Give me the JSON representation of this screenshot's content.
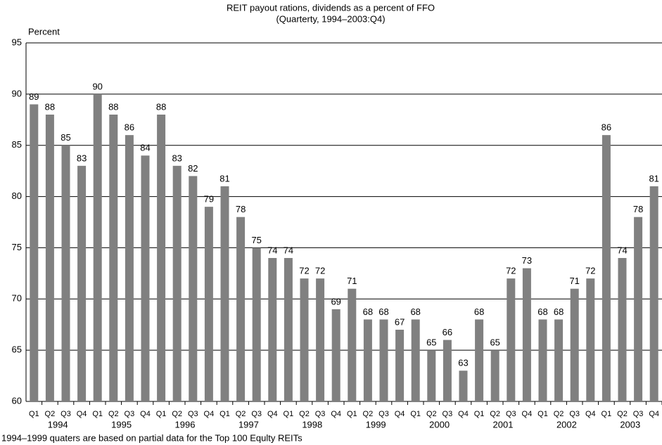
{
  "chart_data": {
    "type": "bar",
    "title": "REIT payout rations, dividends as a percent of FFO",
    "subtitle": "(Quarterty, 1994–2003:Q4)",
    "y_axis_label": "Percent",
    "footnote": "1994–1999 quaters are based on  partial data for the Top 100 Equlty REITs",
    "categories": [
      "Q1",
      "Q2",
      "Q3",
      "Q4",
      "Q1",
      "Q2",
      "Q3",
      "Q4",
      "Q1",
      "Q2",
      "Q3",
      "Q4",
      "Q1",
      "Q2",
      "Q3",
      "Q4",
      "Q1",
      "Q2",
      "Q3",
      "Q4",
      "Q1",
      "Q2",
      "Q3",
      "Q4",
      "Q1",
      "Q2",
      "Q3",
      "Q4",
      "Q1",
      "Q2",
      "Q3",
      "Q4",
      "Q1",
      "Q2",
      "Q3",
      "Q4",
      "Q1",
      "Q2",
      "Q3",
      "Q4"
    ],
    "years": [
      "1994",
      "1995",
      "1996",
      "1997",
      "1998",
      "1999",
      "2000",
      "2001",
      "2002",
      "2003"
    ],
    "values": [
      89,
      88,
      85,
      83,
      90,
      88,
      86,
      84,
      88,
      83,
      82,
      79,
      81,
      78,
      75,
      74,
      74,
      72,
      72,
      69,
      71,
      68,
      68,
      67,
      68,
      65,
      66,
      63,
      68,
      65,
      72,
      73,
      68,
      68,
      71,
      72,
      86,
      74,
      78,
      81
    ],
    "color": "#808080",
    "ylim": [
      60,
      95
    ],
    "yticks": [
      60,
      65,
      70,
      75,
      80,
      85,
      90,
      95
    ],
    "grid": true
  }
}
